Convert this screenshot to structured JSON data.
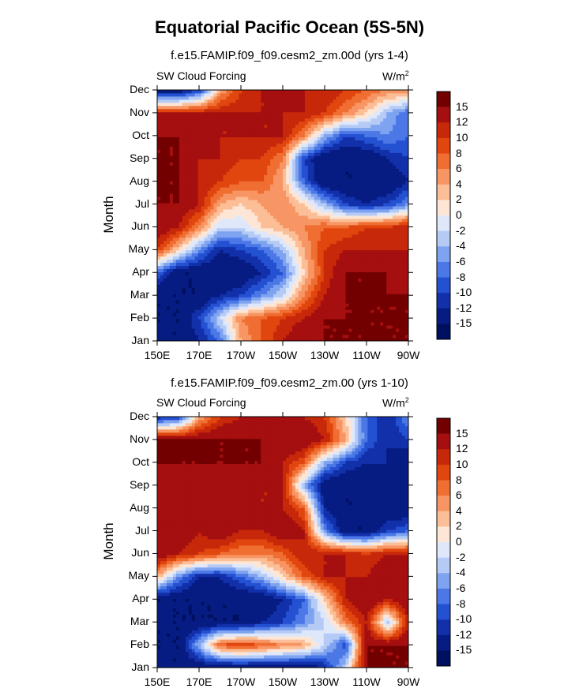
{
  "title": "Equatorial Pacific Ocean (5S-5N)",
  "units": "W/m",
  "units_sup": "2",
  "colorbar": {
    "levels": [
      "15",
      "12",
      "10",
      "8",
      "6",
      "4",
      "2",
      "0",
      "-2",
      "-4",
      "-6",
      "-8",
      "-10",
      "-12",
      "-15"
    ],
    "colors": [
      "#730000",
      "#a50f0f",
      "#c8280a",
      "#e1460f",
      "#f06e32",
      "#f79664",
      "#fcbe96",
      "#fde6d6",
      "#dfe8fb",
      "#b5cbf6",
      "#7ea3f0",
      "#4b78e6",
      "#2450d2",
      "#1230aa",
      "#061c82",
      "#001060"
    ]
  },
  "chart_data": [
    {
      "type": "heatmap",
      "title": "f.e15.FAMIP.f09_f09.cesm2_zm.00d (yrs 1-4)",
      "left_label": "SW Cloud Forcing",
      "ylabel": "Month",
      "xlabel": "",
      "x_ticks": [
        "150E",
        "170E",
        "170W",
        "150W",
        "130W",
        "110W",
        "90W"
      ],
      "y_ticks": [
        "Jan",
        "Feb",
        "Mar",
        "Apr",
        "May",
        "Jun",
        "Jul",
        "Aug",
        "Sep",
        "Oct",
        "Nov",
        "Dec"
      ],
      "x": [
        150,
        160,
        170,
        180,
        190,
        200,
        210,
        220,
        230,
        240,
        250,
        260,
        270
      ],
      "z": [
        [
          -15,
          -15,
          -12,
          -8,
          4,
          8,
          12,
          15,
          15,
          15,
          15,
          15,
          15
        ],
        [
          -15,
          -15,
          -10,
          -2,
          6,
          8,
          10,
          12,
          15,
          15,
          15,
          15,
          15
        ],
        [
          -15,
          -15,
          -15,
          -12,
          -10,
          -6,
          -2,
          6,
          12,
          15,
          15,
          15,
          15
        ],
        [
          -8,
          -15,
          -15,
          -15,
          -15,
          -12,
          -8,
          2,
          10,
          15,
          15,
          15,
          12
        ],
        [
          10,
          2,
          -6,
          -12,
          -10,
          -8,
          -4,
          4,
          10,
          12,
          12,
          12,
          12
        ],
        [
          15,
          12,
          6,
          -2,
          -2,
          2,
          4,
          6,
          8,
          8,
          10,
          10,
          12
        ],
        [
          15,
          15,
          12,
          4,
          2,
          4,
          6,
          2,
          -4,
          -10,
          -12,
          -10,
          -6
        ],
        [
          15,
          15,
          12,
          10,
          8,
          8,
          4,
          -8,
          -15,
          -15,
          -15,
          -15,
          -12
        ],
        [
          15,
          15,
          12,
          12,
          10,
          10,
          6,
          -10,
          -15,
          -15,
          -15,
          -12,
          -10
        ],
        [
          15,
          15,
          15,
          12,
          12,
          12,
          12,
          6,
          -4,
          -10,
          -8,
          -6,
          -8
        ],
        [
          12,
          12,
          12,
          12,
          12,
          12,
          12,
          12,
          10,
          6,
          2,
          -4,
          -8
        ],
        [
          -15,
          -15,
          -10,
          4,
          10,
          12,
          12,
          12,
          12,
          10,
          8,
          6,
          6
        ]
      ]
    },
    {
      "type": "heatmap",
      "title": "f.e15.FAMIP.f09_f09.cesm2_zm.00 (yrs 1-10)",
      "left_label": "SW Cloud Forcing",
      "ylabel": "Month",
      "xlabel": "",
      "x_ticks": [
        "150E",
        "170E",
        "170W",
        "150W",
        "130W",
        "110W",
        "90W"
      ],
      "y_ticks": [
        "Jan",
        "Feb",
        "Mar",
        "Apr",
        "May",
        "Jun",
        "Jul",
        "Aug",
        "Sep",
        "Oct",
        "Nov",
        "Dec"
      ],
      "x": [
        150,
        160,
        170,
        180,
        190,
        200,
        210,
        220,
        230,
        240,
        250,
        260,
        270
      ],
      "z": [
        [
          -15,
          -15,
          -15,
          -15,
          -15,
          -15,
          -15,
          -15,
          -12,
          -2,
          15,
          15,
          15
        ],
        [
          -15,
          -15,
          -4,
          8,
          10,
          8,
          6,
          4,
          -2,
          -10,
          15,
          15,
          15
        ],
        [
          -15,
          -15,
          -15,
          -15,
          -15,
          -12,
          -10,
          -6,
          -2,
          6,
          12,
          -4,
          12
        ],
        [
          -15,
          -15,
          -15,
          -15,
          -15,
          -15,
          -12,
          -8,
          2,
          12,
          15,
          12,
          15
        ],
        [
          4,
          -6,
          -12,
          -12,
          -8,
          -4,
          2,
          8,
          12,
          12,
          12,
          15,
          15
        ],
        [
          15,
          12,
          10,
          8,
          6,
          6,
          8,
          12,
          12,
          12,
          10,
          12,
          12
        ],
        [
          12,
          15,
          12,
          15,
          12,
          12,
          15,
          12,
          -6,
          -15,
          -15,
          -10,
          -8
        ],
        [
          12,
          12,
          15,
          12,
          12,
          12,
          12,
          8,
          -12,
          -15,
          -15,
          -15,
          -15
        ],
        [
          12,
          12,
          12,
          12,
          12,
          12,
          12,
          -4,
          -15,
          -15,
          -15,
          -15,
          -15
        ],
        [
          15,
          15,
          15,
          15,
          15,
          15,
          12,
          8,
          -4,
          -10,
          -12,
          -12,
          -15
        ],
        [
          15,
          15,
          15,
          15,
          15,
          15,
          15,
          15,
          12,
          4,
          -8,
          -12,
          -10
        ],
        [
          -12,
          -10,
          4,
          10,
          12,
          12,
          12,
          12,
          10,
          2,
          -8,
          -12,
          -6
        ]
      ]
    }
  ]
}
